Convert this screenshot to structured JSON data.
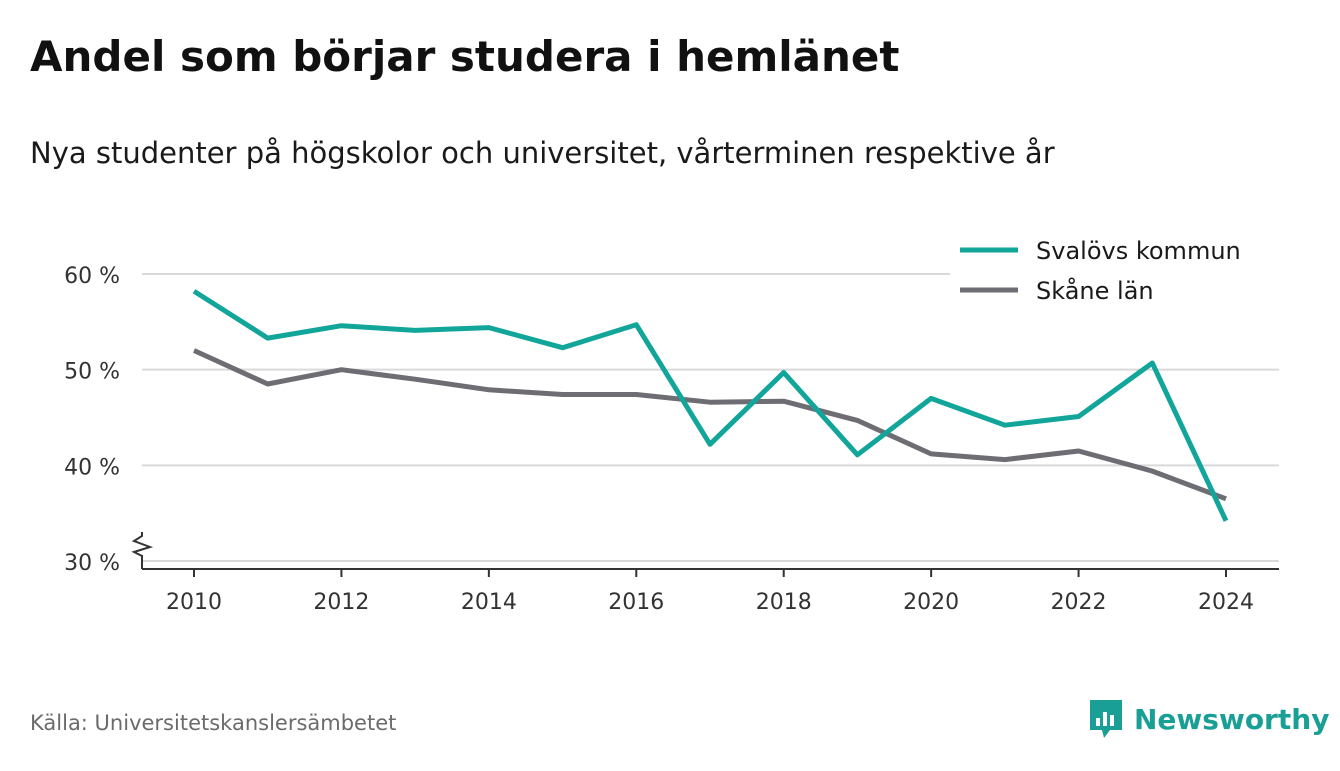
{
  "title": "Andel som börjar studera i hemlänet",
  "subtitle": "Nya studenter på högskolor och universitet, vårterminen respektive år",
  "source": "Källa: Universitetskanslersämbetet",
  "brand": "Newsworthy",
  "colors": {
    "svalov": "#12a59a",
    "skane": "#6e6d74",
    "grid": "#d9d9d9",
    "axis": "#333333",
    "brand": "#1a9f96"
  },
  "chart_data": {
    "type": "line",
    "x": [
      2010,
      2011,
      2012,
      2013,
      2014,
      2015,
      2016,
      2017,
      2018,
      2019,
      2020,
      2021,
      2022,
      2023,
      2024
    ],
    "series": [
      {
        "name": "Svalövs kommun",
        "values": [
          58.2,
          53.3,
          54.6,
          54.1,
          54.4,
          52.3,
          54.7,
          42.2,
          49.7,
          41.1,
          47.0,
          44.2,
          45.1,
          50.7,
          34.2
        ]
      },
      {
        "name": "Skåne län",
        "values": [
          52.0,
          48.5,
          50.0,
          49.0,
          47.9,
          47.4,
          47.4,
          46.6,
          46.7,
          44.7,
          41.2,
          40.6,
          41.5,
          39.4,
          36.5
        ]
      }
    ],
    "y_ticks": [
      30,
      40,
      50,
      60
    ],
    "y_tick_labels": [
      "30 %",
      "40 %",
      "50 %",
      "60 %"
    ],
    "x_ticks": [
      2010,
      2012,
      2014,
      2016,
      2018,
      2020,
      2022,
      2024
    ],
    "x_tick_labels": [
      "2010",
      "2012",
      "2014",
      "2016",
      "2018",
      "2020",
      "2022",
      "2024"
    ],
    "ylim": [
      30,
      62
    ],
    "y_axis_break": true,
    "grid": true,
    "legend_position": "top-right"
  }
}
